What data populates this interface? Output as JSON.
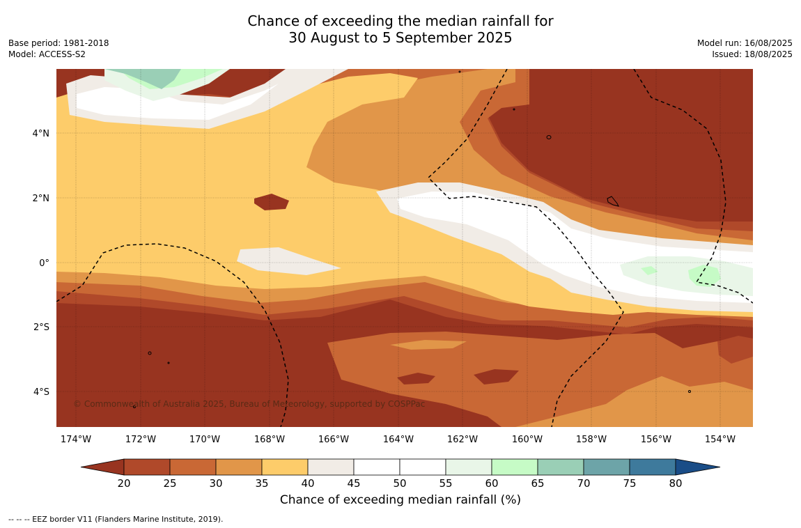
{
  "title": {
    "line1": "Chance of exceeding the median rainfall for",
    "line2": "30 August to 5 September 2025"
  },
  "meta_left": {
    "base_period": "Base period: 1981-2018",
    "model": "Model: ACCESS-S2"
  },
  "meta_right": {
    "model_run": "Model run: 16/08/2025",
    "issued": "Issued: 18/08/2025"
  },
  "map": {
    "lat_ticks": [
      "4°N",
      "2°N",
      "0°",
      "2°S",
      "4°S"
    ],
    "lon_ticks": [
      "174°W",
      "172°W",
      "170°W",
      "168°W",
      "166°W",
      "164°W",
      "162°W",
      "160°W",
      "158°W",
      "156°W",
      "154°W"
    ],
    "copyright": "© Commonwealth of Australia 2025, Bureau of Meteorology, supported by COSPPac"
  },
  "colorbar": {
    "ticks": [
      "20",
      "25",
      "30",
      "35",
      "40",
      "45",
      "50",
      "55",
      "60",
      "65",
      "70",
      "75",
      "80"
    ],
    "colors": [
      "#983420",
      "#b0492a",
      "#c96835",
      "#e19649",
      "#fdcc6a",
      "#f1ece6",
      "#ffffff",
      "#ffffff",
      "#e9f6e8",
      "#c6fbc6",
      "#9acfb6",
      "#6da4a8",
      "#3e7a9c",
      "#1a4d87"
    ],
    "label": "Chance of exceeding median rainfall (%)"
  },
  "footnote": "--  --  -- EEZ border V11 (Flanders Marine Institute, 2019)."
}
